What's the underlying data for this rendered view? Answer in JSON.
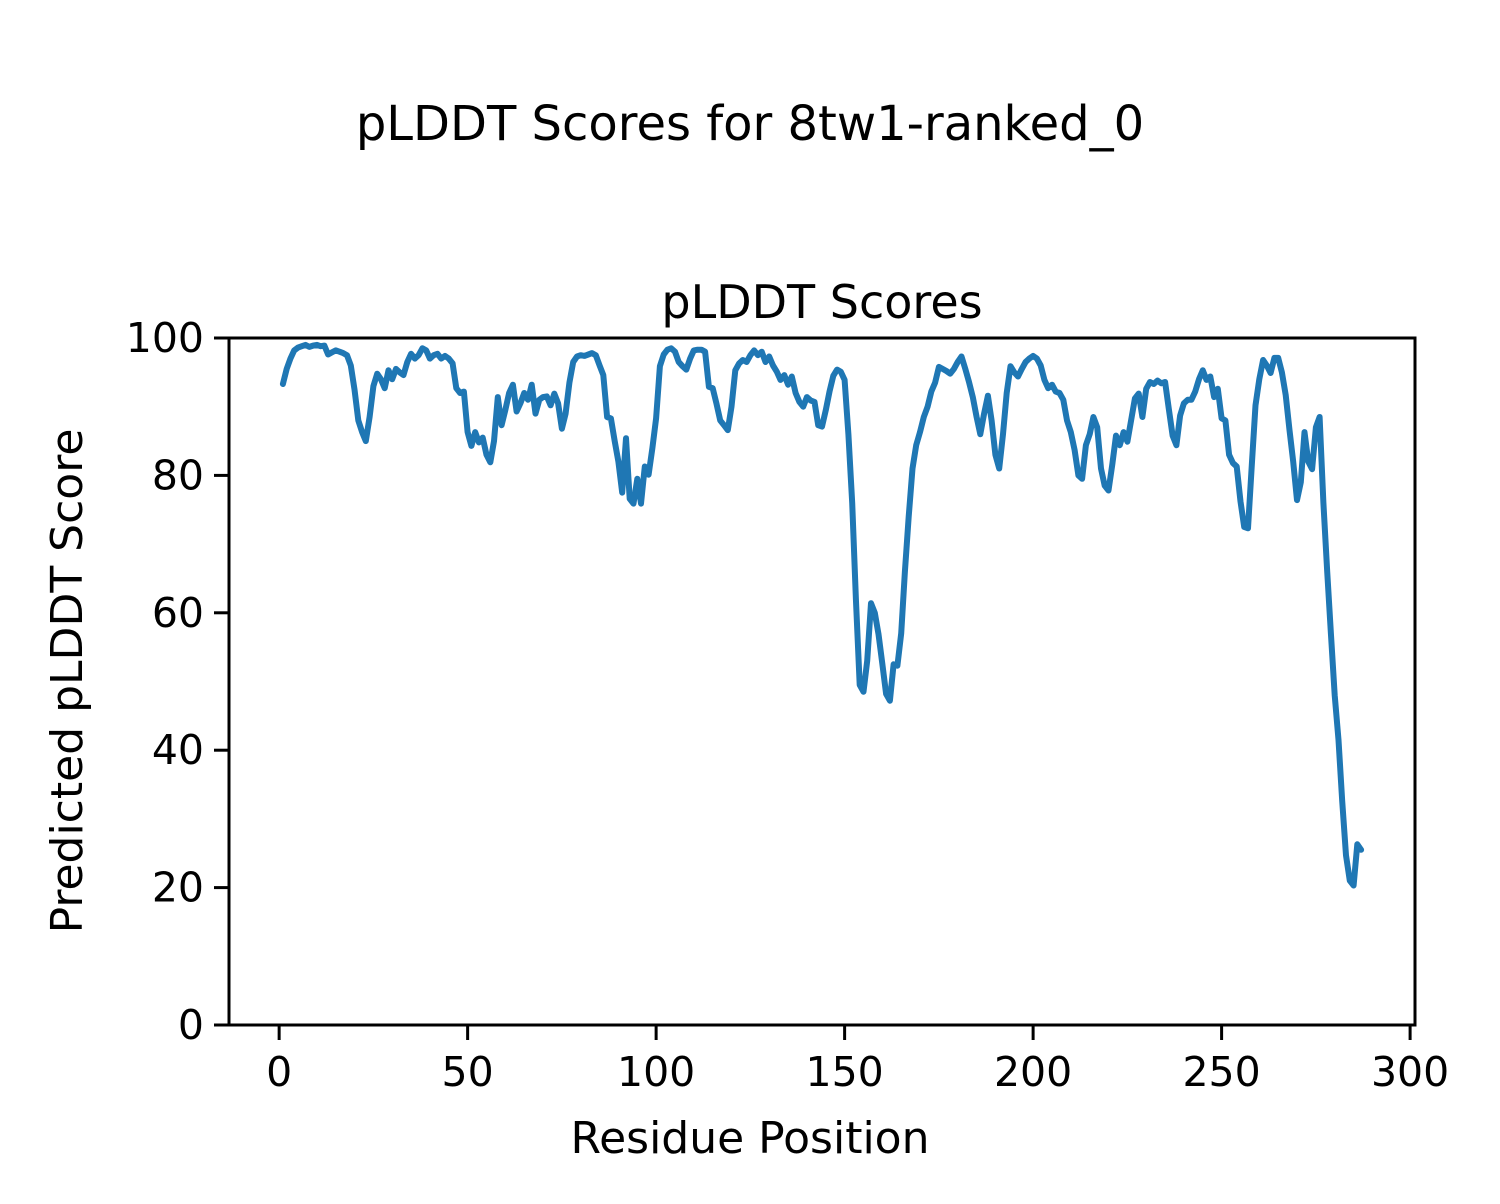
{
  "figure": {
    "suptitle": "pLDDT Scores for 8tw1-ranked_0"
  },
  "chart_data": {
    "type": "line",
    "title": "pLDDT Scores",
    "xlabel": "Residue Position",
    "ylabel": "Predicted pLDDT Score",
    "xlim": [
      -13.3,
      301.3
    ],
    "ylim": [
      0,
      100
    ],
    "xticks": [
      0,
      50,
      100,
      150,
      200,
      250,
      300
    ],
    "yticks": [
      0,
      20,
      40,
      60,
      80,
      100
    ],
    "grid": false,
    "legend_position": "none",
    "line_color": "#1f77b4",
    "series_name": "pLDDT",
    "x": [
      1,
      2,
      3,
      4,
      5,
      6,
      7,
      8,
      9,
      10,
      11,
      12,
      13,
      14,
      15,
      16,
      17,
      18,
      19,
      20,
      21,
      22,
      23,
      24,
      25,
      26,
      27,
      28,
      29,
      30,
      31,
      32,
      33,
      34,
      35,
      36,
      37,
      38,
      39,
      40,
      41,
      42,
      43,
      44,
      45,
      46,
      47,
      48,
      49,
      50,
      51,
      52,
      53,
      54,
      55,
      56,
      57,
      58,
      59,
      60,
      61,
      62,
      63,
      64,
      65,
      66,
      67,
      68,
      69,
      70,
      71,
      72,
      73,
      74,
      75,
      76,
      77,
      78,
      79,
      80,
      81,
      82,
      83,
      84,
      85,
      86,
      87,
      88,
      89,
      90,
      91,
      92,
      93,
      94,
      95,
      96,
      97,
      98,
      99,
      100,
      101,
      102,
      103,
      104,
      105,
      106,
      107,
      108,
      109,
      110,
      111,
      112,
      113,
      114,
      115,
      116,
      117,
      118,
      119,
      120,
      121,
      122,
      123,
      124,
      125,
      126,
      127,
      128,
      129,
      130,
      131,
      132,
      133,
      134,
      135,
      136,
      137,
      138,
      139,
      140,
      141,
      142,
      143,
      144,
      145,
      146,
      147,
      148,
      149,
      150,
      151,
      152,
      153,
      154,
      155,
      156,
      157,
      158,
      159,
      160,
      161,
      162,
      163,
      164,
      165,
      166,
      167,
      168,
      169,
      170,
      171,
      172,
      173,
      174,
      175,
      176,
      177,
      178,
      179,
      180,
      181,
      182,
      183,
      184,
      185,
      186,
      187,
      188,
      189,
      190,
      191,
      192,
      193,
      194,
      195,
      196,
      197,
      198,
      199,
      200,
      201,
      202,
      203,
      204,
      205,
      206,
      207,
      208,
      209,
      210,
      211,
      212,
      213,
      214,
      215,
      216,
      217,
      218,
      219,
      220,
      221,
      222,
      223,
      224,
      225,
      226,
      227,
      228,
      229,
      230,
      231,
      232,
      233,
      234,
      235,
      236,
      237,
      238,
      239,
      240,
      241,
      242,
      243,
      244,
      245,
      246,
      247,
      248,
      249,
      250,
      251,
      252,
      253,
      254,
      255,
      256,
      257,
      258,
      259,
      260,
      261,
      262,
      263,
      264,
      265,
      266,
      267,
      268,
      269,
      270,
      271,
      272,
      273,
      274,
      275,
      276,
      277,
      278,
      279,
      280,
      281,
      282,
      283,
      284,
      285,
      286,
      287
    ],
    "y": [
      93.3,
      95.5,
      97.0,
      98.2,
      98.6,
      98.8,
      99.0,
      98.7,
      98.9,
      99.0,
      98.8,
      98.9,
      97.6,
      97.9,
      98.2,
      98.0,
      97.8,
      97.5,
      96.0,
      92.5,
      88.0,
      86.3,
      85.0,
      88.5,
      93.0,
      94.8,
      94.0,
      92.7,
      95.3,
      94.0,
      95.5,
      95.0,
      94.6,
      96.5,
      97.7,
      97.0,
      97.5,
      98.5,
      98.2,
      97.0,
      97.5,
      97.7,
      97.0,
      97.4,
      97.0,
      96.3,
      92.7,
      92.0,
      92.2,
      86.3,
      84.3,
      86.3,
      84.8,
      85.5,
      83.0,
      81.9,
      85.0,
      91.4,
      87.3,
      89.5,
      92.0,
      93.2,
      89.3,
      90.5,
      92.0,
      91.0,
      93.2,
      89.0,
      91.0,
      91.4,
      91.5,
      90.2,
      91.9,
      90.5,
      86.8,
      89.0,
      93.5,
      96.5,
      97.3,
      97.5,
      97.4,
      97.6,
      97.8,
      97.5,
      96.0,
      94.6,
      88.5,
      88.3,
      85.0,
      82.0,
      77.5,
      85.4,
      76.6,
      75.9,
      79.5,
      75.9,
      81.3,
      80.1,
      84.0,
      88.3,
      95.9,
      97.6,
      98.3,
      98.5,
      98.0,
      96.5,
      95.9,
      95.4,
      97.0,
      98.2,
      98.3,
      98.3,
      98.0,
      92.9,
      92.7,
      90.5,
      88.0,
      87.3,
      86.6,
      90.0,
      95.3,
      96.3,
      96.8,
      96.5,
      97.5,
      98.2,
      97.5,
      98.0,
      96.5,
      97.3,
      96.0,
      95.1,
      93.9,
      94.6,
      93.2,
      94.4,
      92.0,
      90.7,
      90.0,
      91.4,
      90.9,
      90.7,
      87.3,
      87.1,
      89.5,
      92.2,
      94.5,
      95.4,
      95.1,
      93.9,
      86.0,
      76.0,
      62.0,
      49.5,
      48.5,
      53.0,
      61.4,
      60.0,
      56.9,
      52.6,
      48.2,
      47.2,
      52.5,
      52.3,
      57.0,
      66.0,
      74.0,
      81.0,
      84.4,
      86.3,
      88.5,
      90.0,
      92.2,
      93.5,
      95.8,
      95.5,
      95.2,
      94.8,
      95.5,
      96.5,
      97.3,
      95.5,
      93.6,
      91.4,
      88.5,
      86.0,
      89.0,
      91.6,
      88.0,
      83.0,
      81.0,
      86.0,
      92.0,
      95.9,
      95.0,
      94.4,
      95.5,
      96.5,
      97.0,
      97.4,
      97.0,
      96.0,
      93.9,
      92.7,
      93.2,
      92.2,
      92.0,
      91.0,
      88.0,
      86.3,
      83.7,
      80.0,
      79.5,
      84.4,
      86.0,
      88.5,
      87.0,
      81.0,
      78.5,
      77.8,
      81.6,
      85.8,
      84.4,
      86.3,
      84.9,
      88.0,
      91.2,
      91.9,
      88.5,
      92.6,
      93.6,
      93.3,
      93.8,
      93.4,
      93.6,
      89.7,
      85.8,
      84.4,
      88.7,
      90.5,
      91.0,
      91.0,
      92.2,
      94.0,
      95.3,
      93.9,
      94.4,
      91.4,
      92.6,
      88.3,
      88.0,
      83.0,
      81.8,
      81.3,
      76.2,
      72.5,
      72.3,
      81.5,
      90.2,
      94.0,
      96.8,
      96.0,
      94.9,
      97.1,
      97.1,
      95.0,
      91.7,
      86.6,
      82.0,
      76.4,
      79.0,
      86.3,
      82.0,
      80.9,
      87.0,
      88.5,
      76.0,
      66.0,
      57.0,
      48.0,
      41.5,
      32.6,
      24.7,
      21.0,
      20.3,
      26.3,
      25.5
    ]
  }
}
